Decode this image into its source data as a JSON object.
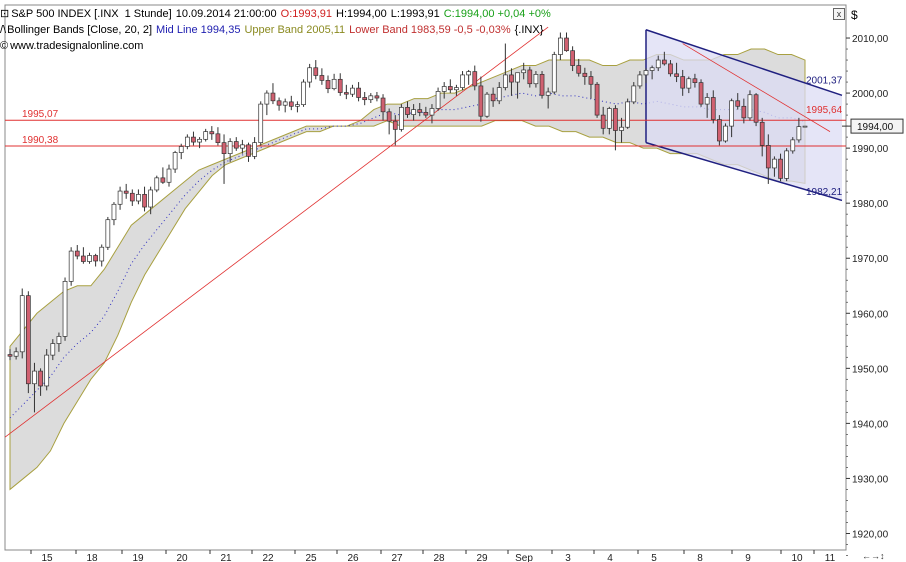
{
  "header": {
    "line1": {
      "symbol": "S&P 500 INDEX [.INX",
      "interval": "1 Stunde]",
      "datetime": "10.09.2014 21:00:00",
      "open": "O:1993,91",
      "high": "H:1994,00",
      "low": "L:1993,91",
      "close_change": "C:1994,00 +0,04 +0%"
    },
    "line2": {
      "indicator": "Bollinger Bands [Close, 20, 2]",
      "mid": "Mid Line 1994,35",
      "upper": "Upper Band 2005,11",
      "lower": "Lower Band 1983,59 -0,5 -0,03%",
      "source": "{.INX}"
    },
    "line3": {
      "website": "www.tradesignalonline.com"
    },
    "currency": "$"
  },
  "colors": {
    "bull": "#ffffff",
    "bear": "#d06070",
    "band_fill": "#dcdcdc",
    "band_line": "#a8a040",
    "mid_line": "#3030c0",
    "hline": "#e03030",
    "channel": "#202080",
    "channel_fill": "#dcdcf4"
  },
  "chart_data": {
    "type": "candlestick",
    "ylim": [
      1917,
      2016
    ],
    "y_ticks": [
      "2010,00",
      "2000,00",
      "1990,00",
      "1980,00",
      "1970,00",
      "1960,00",
      "1950,00",
      "1940,00",
      "1930,00",
      "1920,00"
    ],
    "y_tick_values": [
      2010,
      2000,
      1990,
      1980,
      1970,
      1960,
      1950,
      1940,
      1930,
      1920
    ],
    "x_labels": [
      "15",
      "18",
      "19",
      "20",
      "21",
      "22",
      "25",
      "26",
      "27",
      "28",
      "29",
      "Sep",
      "3",
      "4",
      "5",
      "8",
      "9",
      "10",
      "11"
    ],
    "last_price": {
      "value": 1994.0,
      "label": "1994,00"
    },
    "horizontal_lines": [
      {
        "value": 1995.07,
        "label": "1995,07"
      },
      {
        "value": 1990.38,
        "label": "1990,38"
      }
    ],
    "channel_labels": [
      {
        "value": 2001.37,
        "label": "2001,37"
      },
      {
        "value": 1995.64,
        "label": "1995,64"
      },
      {
        "value": 1982.21,
        "label": "1982,21"
      }
    ],
    "bands": {
      "upper": [
        1954,
        1957,
        1960,
        1962,
        1964,
        1965,
        1965,
        1968,
        1972,
        1976,
        1978,
        1980,
        1982,
        1984,
        1986,
        1987,
        1988,
        1989,
        1990,
        1991,
        1992,
        1993,
        1994,
        1994,
        1994,
        1994,
        1995,
        1997,
        1998,
        1998,
        1999,
        1999,
        2000,
        2000,
        2001,
        2002,
        2003,
        2004,
        2005,
        2005
      ],
      "upper2": [
        2006,
        2006,
        2006,
        2006,
        2005,
        2005,
        2006,
        2006,
        2007,
        2007,
        2006,
        2006,
        2006,
        2007,
        2007,
        2008,
        2008,
        2007,
        2007,
        2006
      ],
      "lower": [
        1928,
        1930,
        1932,
        1935,
        1940,
        1944,
        1948,
        1951,
        1956,
        1962,
        1967,
        1971,
        1975,
        1979,
        1982,
        1985,
        1987,
        1988,
        1989,
        1990,
        1991,
        1992,
        1993,
        1993,
        1994,
        1994,
        1994,
        1994,
        1995,
        1994,
        1994,
        1994,
        1994,
        1994,
        1994,
        1994,
        1995,
        1995,
        1995,
        1994
      ],
      "lower2": [
        1994,
        1993,
        1993,
        1992,
        1992,
        1991,
        1991,
        1990,
        1990,
        1989,
        1989,
        1989,
        1988,
        1987,
        1987,
        1986,
        1985,
        1984,
        1984,
        1983.6
      ]
    },
    "candles": [
      [
        1952.5,
        1953.5,
        1951.5,
        1952.2
      ],
      [
        1952.2,
        1953.8,
        1951.6,
        1953.0
      ],
      [
        1953.0,
        1964.5,
        1951.8,
        1963.2
      ],
      [
        1963.2,
        1964.0,
        1945.5,
        1947.2
      ],
      [
        1947.2,
        1951.0,
        1942.0,
        1949.5
      ],
      [
        1949.5,
        1950.0,
        1945.0,
        1946.8
      ],
      [
        1946.8,
        1953.5,
        1946.0,
        1952.4
      ],
      [
        1952.4,
        1955.3,
        1951.5,
        1954.5
      ],
      [
        1954.5,
        1956.5,
        1953.0,
        1955.8
      ],
      [
        1955.8,
        1966.5,
        1955.0,
        1965.8
      ],
      [
        1965.8,
        1972.0,
        1965.0,
        1971.3
      ],
      [
        1971.3,
        1972.4,
        1969.8,
        1970.4
      ],
      [
        1970.4,
        1972.0,
        1969.0,
        1969.4
      ],
      [
        1969.4,
        1971.0,
        1969.0,
        1970.5
      ],
      [
        1970.5,
        1970.8,
        1968.5,
        1969.5
      ],
      [
        1969.5,
        1972.5,
        1968.5,
        1972.0
      ],
      [
        1972.0,
        1977.5,
        1971.5,
        1977.0
      ],
      [
        1977.0,
        1980.2,
        1976.0,
        1979.8
      ],
      [
        1979.8,
        1983.0,
        1978.8,
        1982.2
      ],
      [
        1982.2,
        1983.5,
        1980.8,
        1981.8
      ],
      [
        1981.8,
        1982.5,
        1979.5,
        1980.4
      ],
      [
        1980.4,
        1982.5,
        1979.8,
        1981.6
      ],
      [
        1981.6,
        1983.0,
        1978.5,
        1979.3
      ],
      [
        1979.3,
        1983.0,
        1978.0,
        1982.4
      ],
      [
        1982.4,
        1985.0,
        1982.0,
        1984.6
      ],
      [
        1984.6,
        1986.5,
        1983.5,
        1983.8
      ],
      [
        1983.8,
        1987.0,
        1983.0,
        1986.2
      ],
      [
        1986.2,
        1989.5,
        1985.5,
        1989.2
      ],
      [
        1989.2,
        1990.8,
        1988.0,
        1990.3
      ],
      [
        1990.3,
        1992.5,
        1989.8,
        1992.0
      ],
      [
        1992.0,
        1993.0,
        1990.5,
        1991.1
      ],
      [
        1991.1,
        1992.0,
        1990.0,
        1991.6
      ],
      [
        1991.6,
        1993.5,
        1991.2,
        1993.0
      ],
      [
        1993.0,
        1994.0,
        1991.5,
        1992.6
      ],
      [
        1992.6,
        1993.8,
        1990.5,
        1991.0
      ],
      [
        1991.0,
        1992.5,
        1983.5,
        1989.0
      ],
      [
        1989.0,
        1991.8,
        1987.5,
        1991.2
      ],
      [
        1991.2,
        1992.0,
        1989.5,
        1990.0
      ],
      [
        1990.0,
        1991.5,
        1989.0,
        1990.6
      ],
      [
        1990.6,
        1991.0,
        1987.5,
        1988.5
      ],
      [
        1988.5,
        1992.0,
        1988.0,
        1991.0
      ],
      [
        1991.0,
        1998.5,
        1990.5,
        1998.0
      ],
      [
        1998.0,
        2000.5,
        1996.0,
        2000.0
      ],
      [
        2000.0,
        2001.8,
        1998.0,
        1998.6
      ],
      [
        1998.6,
        1999.2,
        1996.8,
        1997.8
      ],
      [
        1997.8,
        1999.0,
        1996.5,
        1998.4
      ],
      [
        1998.4,
        1999.5,
        1996.9,
        1997.6
      ],
      [
        1997.6,
        1998.5,
        1996.5,
        1997.9
      ],
      [
        1997.9,
        2002.5,
        1997.5,
        2002.0
      ],
      [
        2002.0,
        2005.3,
        2001.0,
        2004.6
      ],
      [
        2004.6,
        2006.0,
        2002.5,
        2003.2
      ],
      [
        2003.2,
        2004.5,
        2001.5,
        2002.3
      ],
      [
        2002.3,
        2003.2,
        2000.0,
        2000.8
      ],
      [
        2000.8,
        2003.5,
        2000.5,
        2002.5
      ],
      [
        2002.5,
        2003.6,
        1999.5,
        2000.1
      ],
      [
        2000.1,
        2001.5,
        1998.9,
        1999.8
      ],
      [
        1999.8,
        2001.5,
        1999.3,
        2000.9
      ],
      [
        2000.9,
        2002.0,
        1998.5,
        1999.2
      ],
      [
        1999.2,
        2000.2,
        1997.8,
        1998.8
      ],
      [
        1998.8,
        2000.0,
        1998.2,
        1999.5
      ],
      [
        1999.5,
        2000.2,
        1998.5,
        1999.1
      ],
      [
        1999.1,
        1999.8,
        1995.0,
        1996.6
      ],
      [
        1996.6,
        1997.2,
        1992.5,
        1994.9
      ],
      [
        1994.9,
        1996.0,
        1990.5,
        1993.4
      ],
      [
        1993.4,
        1998.0,
        1993.0,
        1997.4
      ],
      [
        1997.4,
        1998.5,
        1995.5,
        1996.1
      ],
      [
        1996.1,
        1998.0,
        1995.0,
        1997.0
      ],
      [
        1997.0,
        1998.2,
        1995.8,
        1996.5
      ],
      [
        1996.5,
        1997.5,
        1995.5,
        1996.0
      ],
      [
        1996.0,
        1998.0,
        1994.5,
        1997.2
      ],
      [
        1997.2,
        2001.0,
        1996.8,
        2000.3
      ],
      [
        2000.3,
        2002.0,
        1999.0,
        2001.2
      ],
      [
        2001.2,
        2002.5,
        2000.0,
        2000.6
      ],
      [
        2000.6,
        2001.5,
        1999.5,
        2001.0
      ],
      [
        2001.0,
        2004.0,
        2000.5,
        2003.3
      ],
      [
        2003.3,
        2004.2,
        2001.5,
        2003.9
      ],
      [
        2003.9,
        2005.0,
        2000.5,
        2001.3
      ],
      [
        2001.3,
        2003.0,
        1994.8,
        1995.8
      ],
      [
        1995.8,
        2000.2,
        1995.5,
        1999.8
      ],
      [
        1999.8,
        2001.0,
        1997.5,
        1998.6
      ],
      [
        1998.6,
        2002.0,
        1998.0,
        2001.0
      ],
      [
        2001.0,
        2009.0,
        2000.5,
        2003.3
      ],
      [
        2003.3,
        2004.5,
        1999.5,
        2002.0
      ],
      [
        2002.0,
        2003.0,
        1999.0,
        2003.7
      ],
      [
        2003.7,
        2005.5,
        2002.5,
        2004.2
      ],
      [
        2004.2,
        2004.8,
        2001.0,
        2001.7
      ],
      [
        2001.7,
        2004.0,
        2001.0,
        2003.4
      ],
      [
        2003.4,
        2004.0,
        1999.0,
        1999.6
      ],
      [
        1999.6,
        2001.0,
        1997.2,
        2000.2
      ],
      [
        2000.2,
        2007.5,
        1999.8,
        2007.0
      ],
      [
        2007.0,
        2011.0,
        2006.0,
        2010.0
      ],
      [
        2010.0,
        2011.0,
        2007.5,
        2007.7
      ],
      [
        2007.7,
        2008.5,
        2004.0,
        2005.0
      ],
      [
        2005.0,
        2006.2,
        2003.0,
        2003.6
      ],
      [
        2003.6,
        2004.6,
        2001.5,
        2003.0
      ],
      [
        2003.0,
        2004.0,
        1999.0,
        2001.6
      ],
      [
        2001.6,
        2002.0,
        1995.5,
        1996.0
      ],
      [
        1996.0,
        1997.5,
        1992.5,
        1993.6
      ],
      [
        1993.6,
        1997.5,
        1992.5,
        1997.2
      ],
      [
        1997.2,
        1997.8,
        1989.6,
        1993.2
      ],
      [
        1993.2,
        1995.5,
        1991.0,
        1993.8
      ],
      [
        1993.8,
        1999.0,
        1993.5,
        1998.4
      ],
      [
        1998.4,
        2002.0,
        1998.0,
        2001.3
      ],
      [
        2001.3,
        2004.0,
        2000.8,
        2003.3
      ],
      [
        2003.3,
        2004.5,
        2001.8,
        2004.1
      ],
      [
        2004.1,
        2005.0,
        2002.5,
        2004.6
      ],
      [
        2004.6,
        2006.8,
        2004.0,
        2006.0
      ],
      [
        2006.0,
        2007.5,
        2005.0,
        2005.3
      ],
      [
        2005.3,
        2006.0,
        2003.0,
        2003.5
      ],
      [
        2003.5,
        2005.5,
        2002.0,
        2003.0
      ],
      [
        2003.0,
        2004.2,
        1999.5,
        2000.9
      ],
      [
        2000.9,
        2003.0,
        2000.0,
        2002.6
      ],
      [
        2002.6,
        2003.5,
        2001.0,
        2001.9
      ],
      [
        2001.9,
        2002.5,
        1997.5,
        1998.0
      ],
      [
        1998.0,
        2000.0,
        1995.5,
        1999.2
      ],
      [
        1999.2,
        2000.5,
        1994.5,
        1995.2
      ],
      [
        1995.2,
        1996.0,
        1990.5,
        1991.3
      ],
      [
        1991.3,
        1994.5,
        1991.0,
        1994.0
      ],
      [
        1994.0,
        1999.0,
        1992.0,
        1998.6
      ],
      [
        1998.6,
        2000.0,
        1997.0,
        1997.6
      ],
      [
        1997.6,
        1999.0,
        1994.5,
        1995.5
      ],
      [
        1995.5,
        2000.5,
        1995.0,
        1999.7
      ],
      [
        1999.7,
        2000.0,
        1994.0,
        1994.7
      ],
      [
        1994.7,
        1995.5,
        1988.5,
        1990.5
      ],
      [
        1990.5,
        1992.5,
        1983.5,
        1986.4
      ],
      [
        1986.4,
        1988.5,
        1984.8,
        1988.0
      ],
      [
        1988.0,
        1989.0,
        1984.0,
        1984.5
      ],
      [
        1984.5,
        1990.0,
        1984.0,
        1989.5
      ],
      [
        1989.5,
        1992.0,
        1989.0,
        1991.5
      ],
      [
        1991.5,
        1995.5,
        1991.0,
        1993.9
      ],
      [
        1993.9,
        1994.0,
        1993.9,
        1994.0
      ]
    ]
  },
  "ui": {
    "close_label": "x",
    "scroll_label": "←→↕"
  }
}
